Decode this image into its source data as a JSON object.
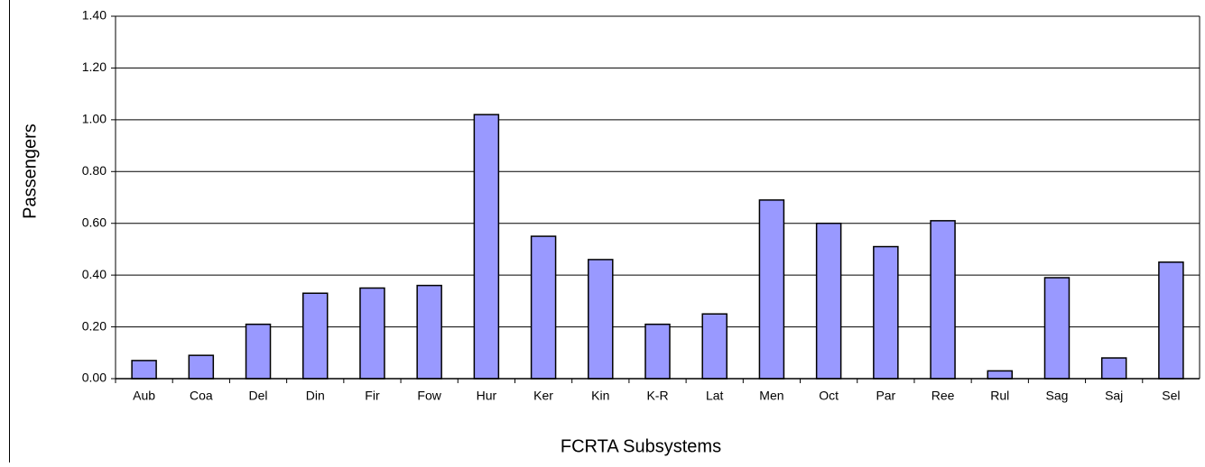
{
  "chart_data": {
    "type": "bar",
    "xlabel": "FCRTA Subsystems",
    "ylabel": "Passengers",
    "categories": [
      "Aub",
      "Coa",
      "Del",
      "Din",
      "Fir",
      "Fow",
      "Hur",
      "Ker",
      "Kin",
      "K-R",
      "Lat",
      "Men",
      "Oct",
      "Par",
      "Ree",
      "Rul",
      "Sag",
      "Saj",
      "Sel"
    ],
    "values": [
      0.07,
      0.09,
      0.21,
      0.33,
      0.35,
      0.36,
      1.02,
      0.55,
      0.46,
      0.21,
      0.25,
      0.69,
      0.6,
      0.51,
      0.61,
      0.03,
      0.39,
      0.08,
      0.45
    ],
    "color": "#9999ff",
    "ylim": [
      0,
      1.4
    ],
    "yticks": [
      {
        "value": 0,
        "label": "0.00"
      },
      {
        "value": 0.2,
        "label": "0.20"
      },
      {
        "value": 0.4,
        "label": "0.40"
      },
      {
        "value": 0.6,
        "label": "0.60"
      },
      {
        "value": 0.8,
        "label": "0.80"
      },
      {
        "value": 1.0,
        "label": "1.00"
      },
      {
        "value": 1.2,
        "label": "1.20"
      },
      {
        "value": 1.4,
        "label": "1.40"
      }
    ],
    "grid": true
  }
}
